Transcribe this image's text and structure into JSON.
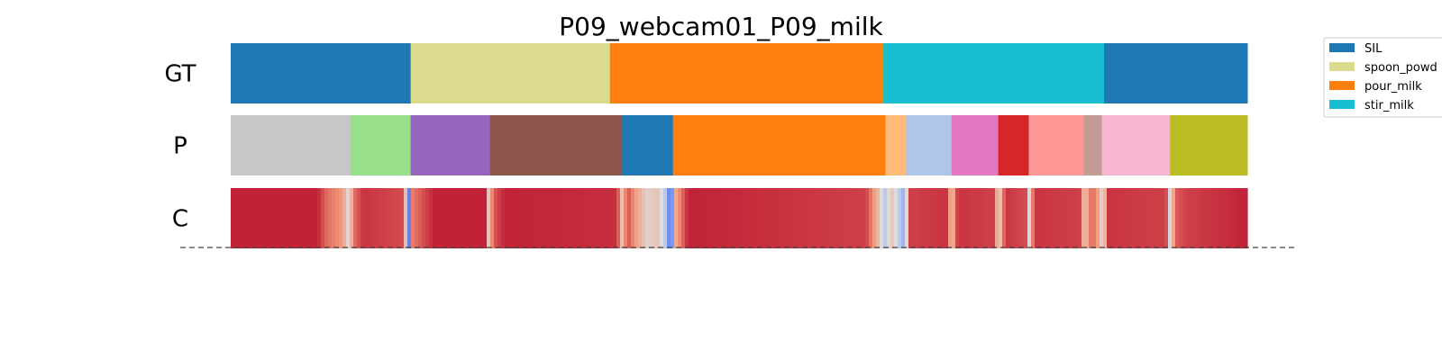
{
  "chart_data": {
    "type": "segmentation",
    "title": "P09_webcam01_P09_milk",
    "x_range": [
      0,
      100
    ],
    "rows": [
      {
        "label": "GT",
        "segments": [
          {
            "start": 0.0,
            "end": 17.7,
            "color": "#1f77b4"
          },
          {
            "start": 17.7,
            "end": 37.3,
            "color": "#dbdb8d"
          },
          {
            "start": 37.3,
            "end": 64.2,
            "color": "#ff7f0e"
          },
          {
            "start": 64.2,
            "end": 85.9,
            "color": "#17becf"
          },
          {
            "start": 85.9,
            "end": 100.0,
            "color": "#1f77b4"
          }
        ]
      },
      {
        "label": "P",
        "segments": [
          {
            "start": 0.0,
            "end": 11.8,
            "color": "#c7c7c7"
          },
          {
            "start": 11.8,
            "end": 17.7,
            "color": "#98df8a"
          },
          {
            "start": 17.7,
            "end": 25.5,
            "color": "#9467bd"
          },
          {
            "start": 25.5,
            "end": 38.5,
            "color": "#8c564b"
          },
          {
            "start": 38.5,
            "end": 43.5,
            "color": "#1f77b4"
          },
          {
            "start": 43.5,
            "end": 64.4,
            "color": "#ff7f0e"
          },
          {
            "start": 64.4,
            "end": 66.4,
            "color": "#ffbb78"
          },
          {
            "start": 66.4,
            "end": 70.9,
            "color": "#aec7e8"
          },
          {
            "start": 70.9,
            "end": 75.5,
            "color": "#e377c2"
          },
          {
            "start": 75.5,
            "end": 78.5,
            "color": "#d62728"
          },
          {
            "start": 78.5,
            "end": 83.9,
            "color": "#ff9896"
          },
          {
            "start": 83.9,
            "end": 85.7,
            "color": "#c49c94"
          },
          {
            "start": 85.7,
            "end": 92.4,
            "color": "#f7b6d2"
          },
          {
            "start": 92.4,
            "end": 100.0,
            "color": "#bcbd22"
          }
        ]
      },
      {
        "label": "C",
        "colormap": "coolwarm",
        "points": [
          [
            0,
            0.95
          ],
          [
            8.5,
            0.95
          ],
          [
            9.5,
            0.82
          ],
          [
            11.0,
            0.75
          ],
          [
            11.7,
            0.45
          ],
          [
            12.0,
            0.8
          ],
          [
            13.0,
            0.92
          ],
          [
            17.0,
            0.88
          ],
          [
            17.6,
            0.1
          ],
          [
            17.9,
            0.8
          ],
          [
            20.0,
            0.95
          ],
          [
            25.0,
            0.95
          ],
          [
            25.4,
            0.55
          ],
          [
            25.8,
            0.85
          ],
          [
            27.0,
            0.95
          ],
          [
            38.0,
            0.93
          ],
          [
            38.5,
            0.6
          ],
          [
            39.0,
            0.88
          ],
          [
            40.0,
            0.7
          ],
          [
            41.0,
            0.55
          ],
          [
            42.0,
            0.6
          ],
          [
            42.8,
            0.4
          ],
          [
            43.3,
            0.05
          ],
          [
            43.8,
            0.7
          ],
          [
            45.0,
            0.95
          ],
          [
            62.5,
            0.9
          ],
          [
            63.5,
            0.7
          ],
          [
            64.3,
            0.4
          ],
          [
            65.0,
            0.6
          ],
          [
            66.3,
            0.3
          ],
          [
            66.8,
            0.9
          ],
          [
            70.5,
            0.92
          ],
          [
            70.9,
            0.6
          ],
          [
            71.5,
            0.92
          ],
          [
            75.0,
            0.9
          ],
          [
            75.6,
            0.55
          ],
          [
            76.2,
            0.92
          ],
          [
            78.3,
            0.88
          ],
          [
            78.6,
            0.45
          ],
          [
            79.0,
            0.92
          ],
          [
            83.5,
            0.9
          ],
          [
            84.0,
            0.6
          ],
          [
            84.7,
            0.85
          ],
          [
            85.5,
            0.7
          ],
          [
            85.8,
            0.4
          ],
          [
            86.2,
            0.92
          ],
          [
            92.0,
            0.9
          ],
          [
            92.4,
            0.45
          ],
          [
            92.9,
            0.85
          ],
          [
            94.0,
            0.9
          ],
          [
            100,
            0.95
          ]
        ]
      }
    ],
    "legend": {
      "position": "top-right",
      "entries": [
        {
          "label": "SIL",
          "color": "#1f77b4"
        },
        {
          "label": "spoon_powd",
          "color": "#dbdb8d"
        },
        {
          "label": "pour_milk",
          "color": "#ff7f0e"
        },
        {
          "label": "stir_milk",
          "color": "#17becf"
        }
      ]
    },
    "grid": false
  }
}
